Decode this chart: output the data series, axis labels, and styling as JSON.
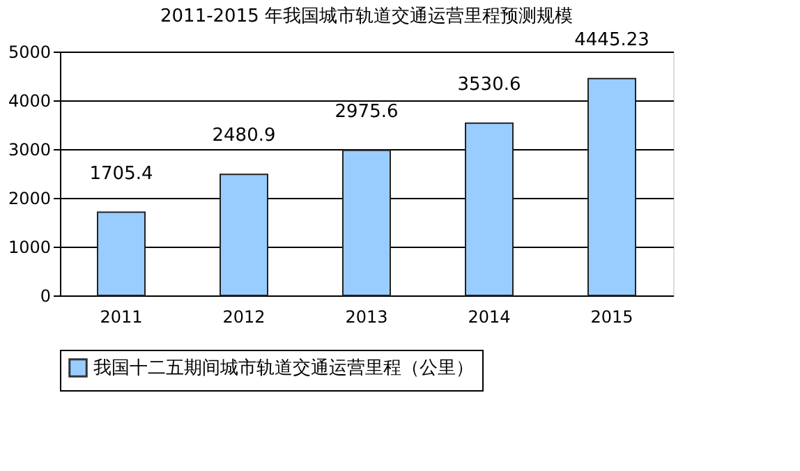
{
  "chart_data": {
    "type": "bar",
    "title": "2011-2015 年我国城市轨道交通运营里程预测规模",
    "categories": [
      "2011",
      "2012",
      "2013",
      "2014",
      "2015"
    ],
    "series": [
      {
        "name": "我国十二五期间城市轨道交通运营里程（公里）",
        "color": "#99ccff",
        "values": [
          1705.4,
          2480.9,
          2975.6,
          3530.6,
          4445.23
        ]
      }
    ],
    "ylim": [
      0,
      5000
    ],
    "yticks": [
      0,
      1000,
      2000,
      3000,
      4000,
      5000
    ],
    "grid": "y",
    "legend": "bottom",
    "data_labels": true
  }
}
